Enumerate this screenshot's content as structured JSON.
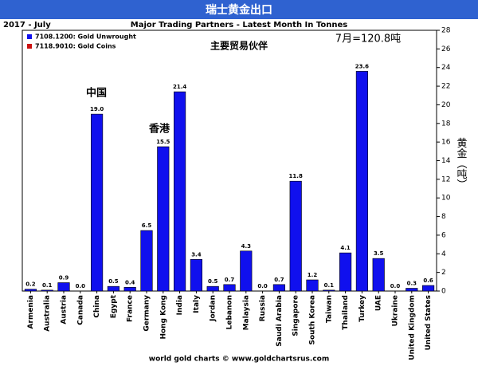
{
  "chart_data": {
    "type": "bar",
    "title": "瑞士黄金出口",
    "period": "2017 - July",
    "subtitle": "Major Trading Partners - Latest Month In Tonnes",
    "annotations": [
      "主要贸易伙伴",
      "7月=120.8吨",
      "中国",
      "香港"
    ],
    "y_label": "黄金（吨）",
    "footer": "world gold charts © www.goldchartsrus.com",
    "legend": [
      {
        "name": "7108.1200: Gold Unwrought",
        "color": "#1010ee"
      },
      {
        "name": "7118.9010: Gold Coins",
        "color": "#cc1111"
      }
    ],
    "categories": [
      "Armenia",
      "Australia",
      "Austria",
      "Canada",
      "China",
      "Egypt",
      "France",
      "Germany",
      "Hong Kong",
      "India",
      "Italy",
      "Jordan",
      "Lebanon",
      "Malaysia",
      "Russia",
      "Saudi Arabia",
      "Singapore",
      "South Korea",
      "Taiwan",
      "Thailand",
      "Turkey",
      "UAE",
      "Ukraine",
      "United Kingdom",
      "United States"
    ],
    "values": [
      0.2,
      0.1,
      0.9,
      0,
      19,
      0.5,
      0.4,
      6.5,
      15.5,
      21.4,
      3.4,
      0.5,
      0.7,
      4.3,
      0,
      0.7,
      11.8,
      1.2,
      0.1,
      4.1,
      23.6,
      3.5,
      0,
      0.3,
      0.6
    ],
    "value_labels": [
      "0.2",
      "0.1",
      "0.9",
      "0.0",
      "19.0",
      "0.5",
      "0.4",
      "6.5",
      "15.5",
      "21.4",
      "3.4",
      "0.5",
      "0.7",
      "4.3",
      "0.0",
      "0.7",
      "11.8",
      "1.2",
      "0.1",
      "4.1",
      "23.6",
      "3.5",
      "0.0",
      "0.3",
      "0.6"
    ],
    "color": "#1010ee",
    "ylim": [
      0,
      28
    ],
    "yticks": [
      0,
      2,
      4,
      6,
      8,
      10,
      12,
      14,
      16,
      18,
      20,
      22,
      24,
      26,
      28
    ],
    "grid": false
  }
}
